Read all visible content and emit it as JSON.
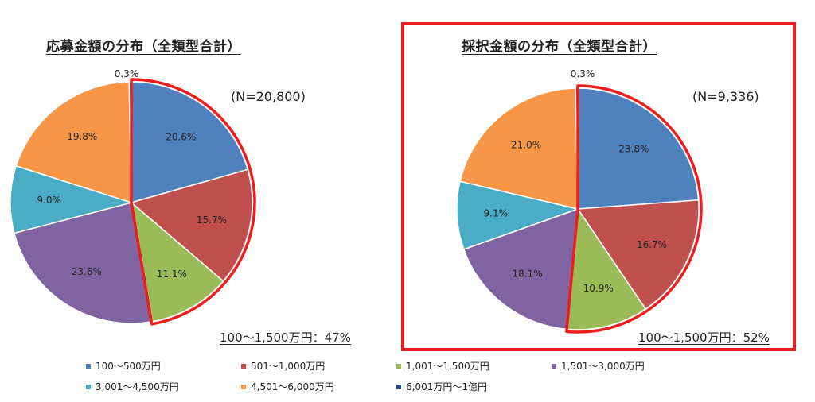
{
  "chart_data": [
    {
      "type": "pie",
      "title": "応募金額の分布（全類型合計）",
      "n_label": "(N=20,800)",
      "summary": "100～1,500万円：47%",
      "categories": [
        "100～500万円",
        "501～1,000万円",
        "1,001～1,500万円",
        "1,501～3,000万円",
        "3,001～4,500万円",
        "4,501～6,000万円",
        "6,001万円～1億円"
      ],
      "values": [
        20.6,
        15.7,
        11.1,
        23.6,
        9.0,
        19.8,
        0.3
      ],
      "value_labels": [
        "20.6%",
        "15.7%",
        "11.1%",
        "23.6%",
        "9.0%",
        "19.8%",
        "0.3%"
      ],
      "highlighted_categories": [
        "100～500万円",
        "501～1,000万円",
        "1,001～1,500万円"
      ]
    },
    {
      "type": "pie",
      "title": "採択金額の分布（全類型合計）",
      "n_label": "(N=9,336)",
      "summary": "100～1,500万円：52%",
      "categories": [
        "100～500万円",
        "501～1,000万円",
        "1,001～1,500万円",
        "1,501～3,000万円",
        "3,001～4,500万円",
        "4,501～6,000万円",
        "6,001万円～1億円"
      ],
      "values": [
        23.8,
        16.7,
        10.9,
        18.1,
        9.1,
        21.0,
        0.3
      ],
      "value_labels": [
        "23.8%",
        "16.7%",
        "10.9%",
        "18.1%",
        "9.1%",
        "21.0%",
        "0.3%"
      ],
      "highlighted_categories": [
        "100～500万円",
        "501～1,000万円",
        "1,001～1,500万円"
      ]
    }
  ],
  "legend": [
    {
      "label": "100～500万円",
      "color": "#4f81bd"
    },
    {
      "label": "501～1,000万円",
      "color": "#c0504d"
    },
    {
      "label": "1,001～1,500万円",
      "color": "#9bbb59"
    },
    {
      "label": "1,501～3,000万円",
      "color": "#8064a2"
    },
    {
      "label": "3,001～4,500万円",
      "color": "#4bacc6"
    },
    {
      "label": "4,501～6,000万円",
      "color": "#f79646"
    },
    {
      "label": "6,001万円～1億円",
      "color": "#1f497d"
    }
  ],
  "colors": {
    "highlight": "#ee1c1c"
  }
}
